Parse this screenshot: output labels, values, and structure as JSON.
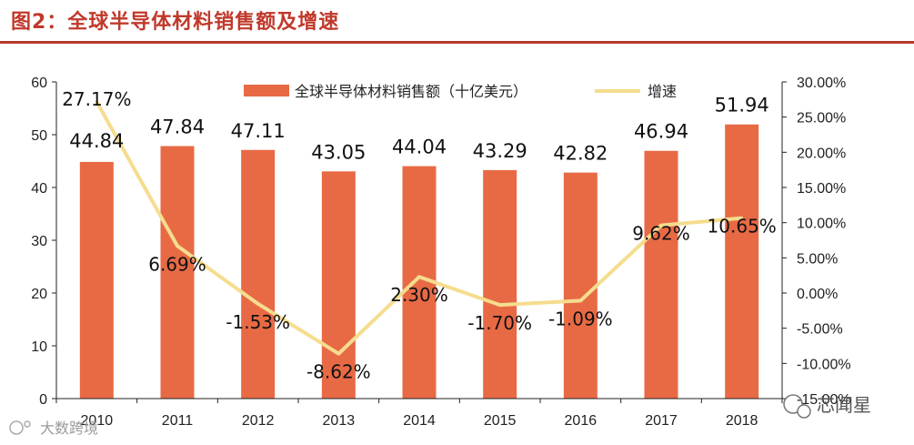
{
  "figure_title": "图2：全球半导体材料销售额及增速",
  "watermarks": {
    "left": "大数跨境",
    "right": "芯闻星"
  },
  "colors": {
    "title": "#c0392b",
    "bar": "#e86a45",
    "line": "#f5dd8e",
    "rule": "#b33a2c"
  },
  "chart_data": {
    "type": "bar+line",
    "categories": [
      "2010",
      "2011",
      "2012",
      "2013",
      "2014",
      "2015",
      "2016",
      "2017",
      "2018"
    ],
    "series": [
      {
        "name": "全球半导体材料销售额（十亿美元）",
        "type": "bar",
        "axis": "left",
        "values": [
          44.84,
          47.84,
          47.11,
          43.05,
          44.04,
          43.29,
          42.82,
          46.94,
          51.94
        ],
        "labels": [
          "44.84",
          "47.84",
          "47.11",
          "43.05",
          "44.04",
          "43.29",
          "42.82",
          "46.94",
          "51.94"
        ]
      },
      {
        "name": "增速",
        "type": "line",
        "axis": "right",
        "values": [
          27.17,
          6.69,
          -1.53,
          -8.62,
          2.3,
          -1.7,
          -1.09,
          9.62,
          10.65
        ],
        "labels": [
          "27.17%",
          "6.69%",
          "-1.53%",
          "-8.62%",
          "2.30%",
          "-1.70%",
          "-1.09%",
          "9.62%",
          "10.65%"
        ]
      }
    ],
    "left_axis": {
      "ylim": [
        0,
        60
      ],
      "ticks": [
        "0",
        "10",
        "20",
        "30",
        "40",
        "50",
        "60"
      ]
    },
    "right_axis": {
      "ylim": [
        -15,
        30
      ],
      "ticks": [
        "-15.00%",
        "-10.00%",
        "-5.00%",
        "0.00%",
        "5.00%",
        "10.00%",
        "15.00%",
        "20.00%",
        "25.00%",
        "30.00%"
      ]
    },
    "legend_position": "top-center",
    "grid": false
  }
}
